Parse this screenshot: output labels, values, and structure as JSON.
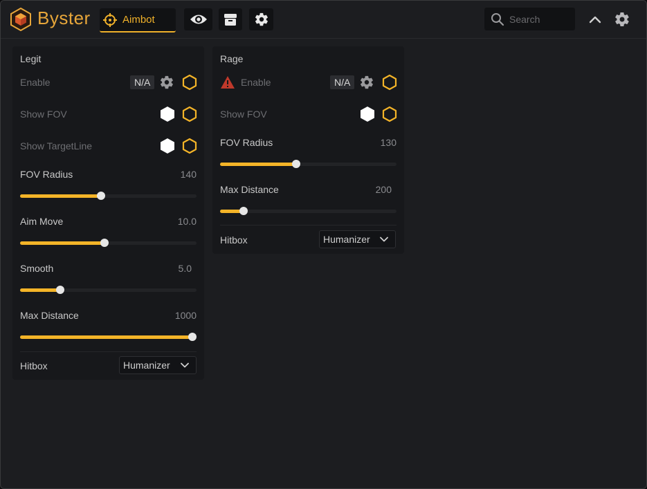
{
  "app": {
    "brand": "Byster"
  },
  "topbar": {
    "tabs": [
      {
        "label": "Aimbot",
        "icon": "crosshair-icon",
        "active": true
      },
      {
        "icon": "eye-icon"
      },
      {
        "icon": "box-icon"
      },
      {
        "icon": "gear-icon"
      }
    ],
    "search": {
      "placeholder": "Search",
      "value": ""
    },
    "collapse_icon": "chevron-up-icon",
    "settings_icon": "gear-icon"
  },
  "colors": {
    "accent": "#f4b428",
    "warning": "#c0392b",
    "background": "#1c1d20",
    "panel": "#17181b"
  },
  "legit": {
    "title": "Legit",
    "enable": {
      "label": "Enable",
      "badge": "N/A"
    },
    "show_fov": {
      "label": "Show FOV"
    },
    "show_targetline": {
      "label": "Show TargetLine"
    },
    "fov_radius": {
      "label": "FOV Radius",
      "value": "140",
      "fraction": 0.46
    },
    "aim_move": {
      "label": "Aim Move",
      "value": "10.0",
      "fraction": 0.477
    },
    "smooth": {
      "label": "Smooth",
      "value": "5.0",
      "fraction": 0.227
    },
    "max_distance": {
      "label": "Max Distance",
      "value": "1000",
      "fraction": 1.0
    },
    "hitbox": {
      "label": "Hitbox",
      "selected": "Humanizer"
    }
  },
  "rage": {
    "title": "Rage",
    "enable": {
      "label": "Enable",
      "badge": "N/A",
      "warning": true
    },
    "show_fov": {
      "label": "Show FOV"
    },
    "fov_radius": {
      "label": "FOV Radius",
      "value": "130",
      "fraction": 0.431
    },
    "max_distance": {
      "label": "Max Distance",
      "value": "200",
      "fraction": 0.133
    },
    "hitbox": {
      "label": "Hitbox",
      "selected": "Humanizer"
    }
  }
}
